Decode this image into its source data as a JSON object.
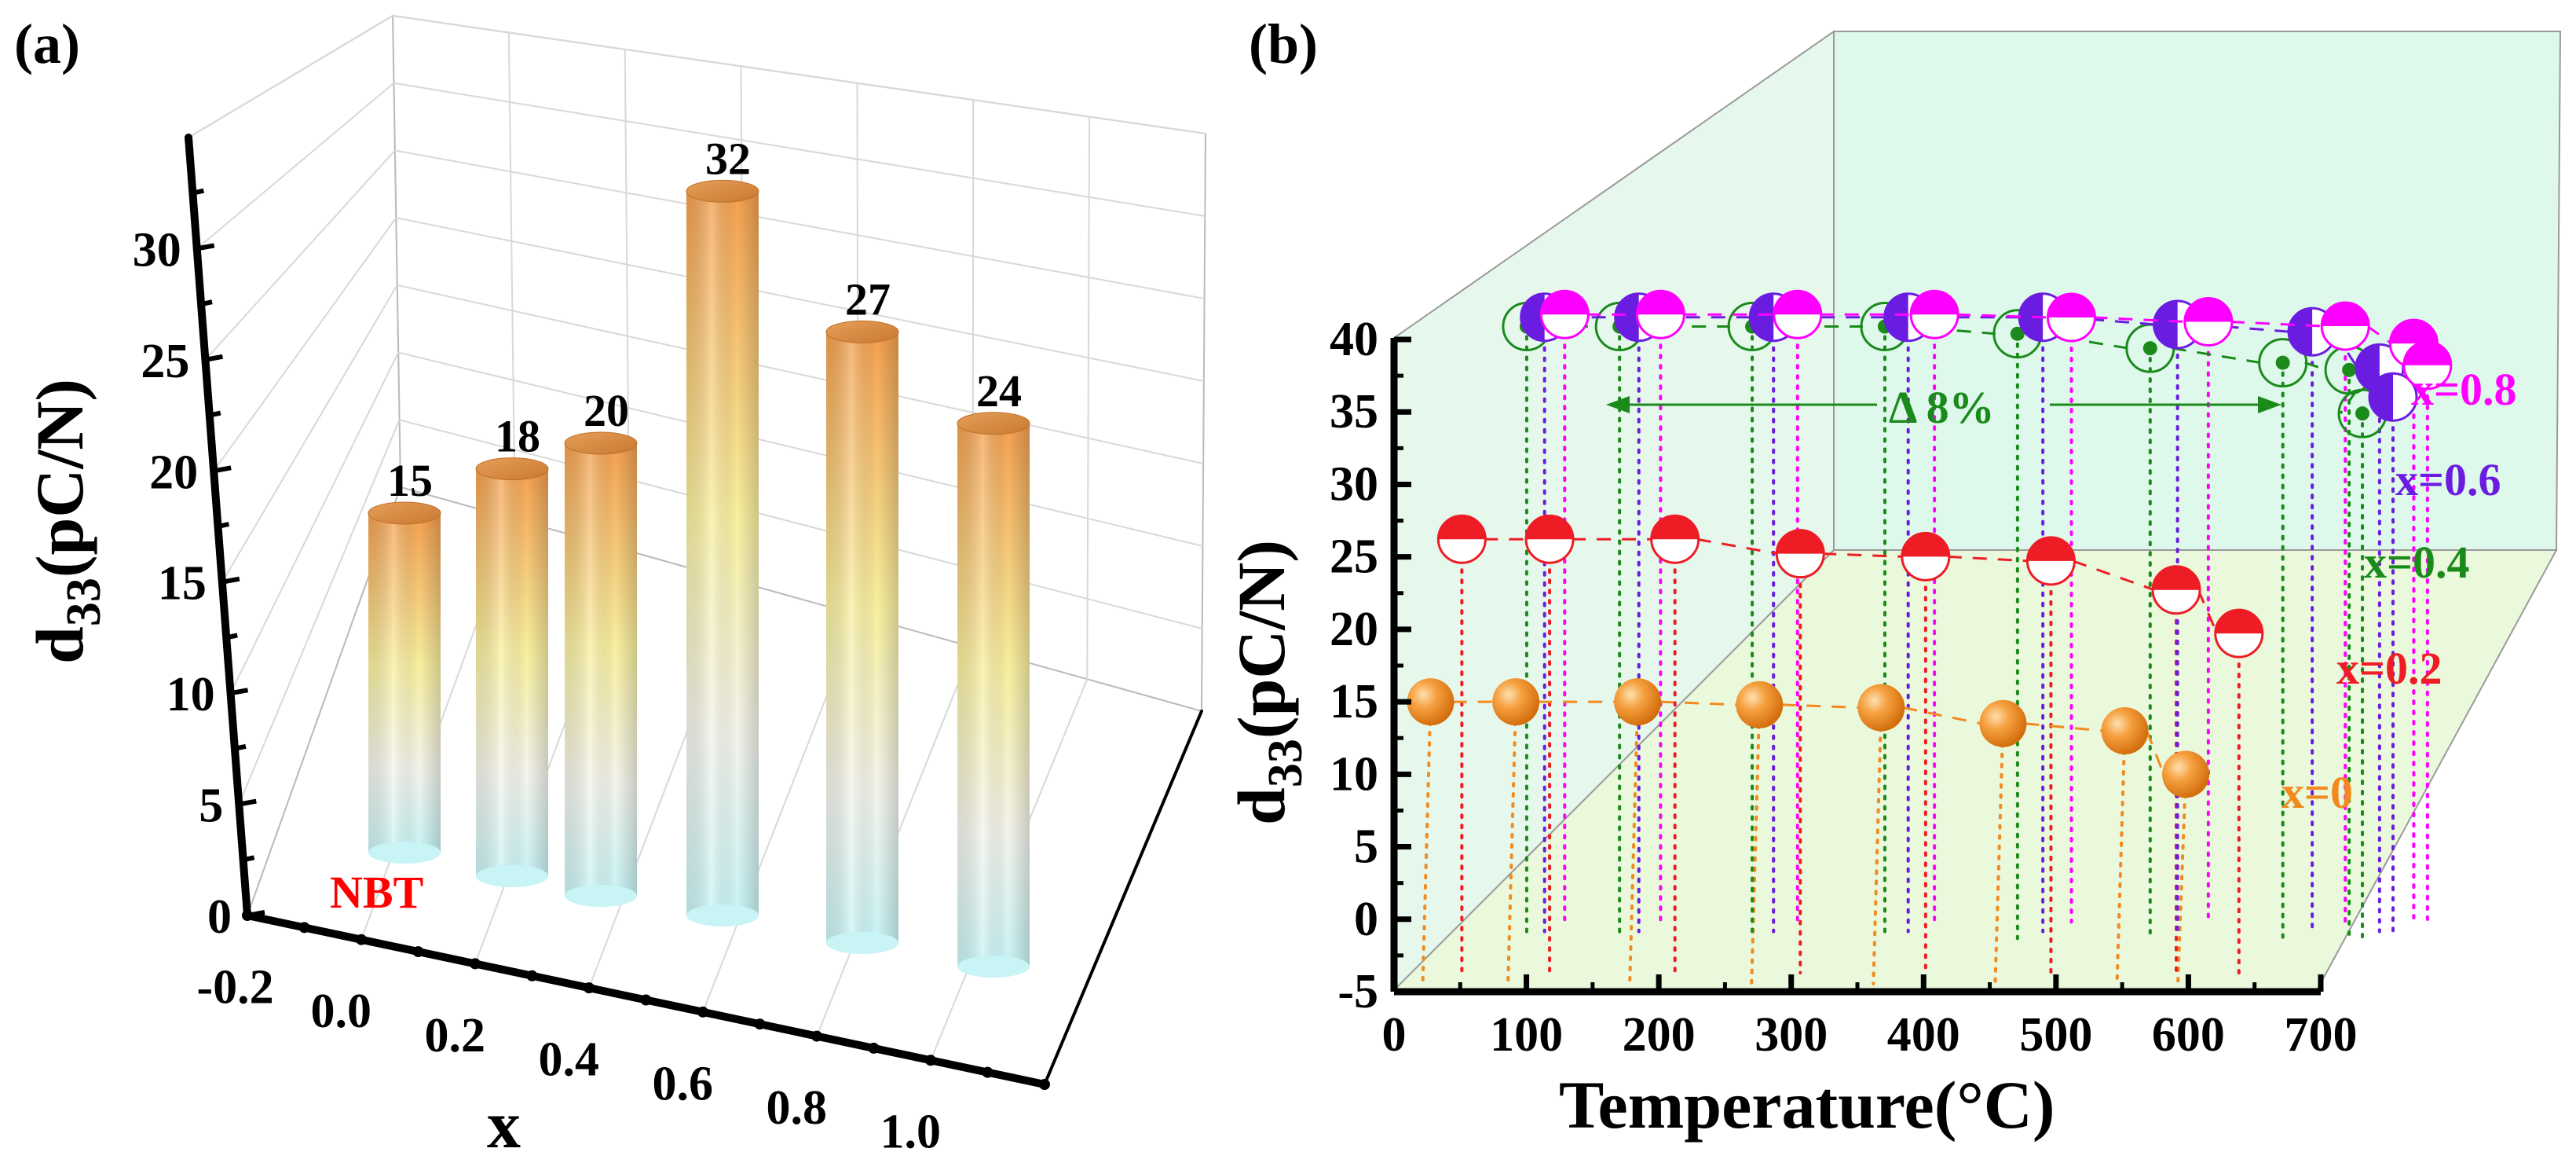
{
  "chart_data": [
    {
      "panel": "(a)",
      "type": "bar",
      "style": "3d-cylinder",
      "categories": [
        "0.0",
        "0.2",
        "0.4",
        "0.6",
        "0.8",
        "1.0"
      ],
      "x_ticks": [
        "-0.2",
        "0.0",
        "0.2",
        "0.4",
        "0.6",
        "0.8",
        "1.0"
      ],
      "values": [
        15,
        18,
        20,
        32,
        27,
        24
      ],
      "data_labels": [
        "15",
        "18",
        "20",
        "32",
        "27",
        "24"
      ],
      "annotation": "NBT",
      "xlabel": "x",
      "ylabel_main": "d",
      "ylabel_sub": "33",
      "ylabel_rest": "(pC/N)",
      "y_ticks": [
        "0",
        "5",
        "10",
        "15",
        "20",
        "25",
        "30"
      ],
      "ylim": [
        0,
        35
      ],
      "colors": {
        "top": "#f0a050",
        "middle": "#f8f0a0",
        "bottom": "#c8f4f6",
        "accent": "#ff0000"
      }
    },
    {
      "panel": "(b)",
      "type": "scatter",
      "style": "3d-waterfall",
      "xlabel": "Temperature(°C)",
      "ylabel_main": "d",
      "ylabel_sub": "33",
      "ylabel_rest": "(pC/N)",
      "x_ticks": [
        "0",
        "100",
        "200",
        "300",
        "400",
        "500",
        "600",
        "700"
      ],
      "y_ticks": [
        "-5",
        "0",
        "5",
        "10",
        "15",
        "20",
        "25",
        "30",
        "35",
        "40"
      ],
      "xlim": [
        0,
        700
      ],
      "ylim": [
        -5,
        40
      ],
      "annotation": "Δ  8%",
      "series": [
        {
          "name": "x=0",
          "color": "#f28a1e",
          "marker": "sphere",
          "x": [
            30,
            100,
            200,
            300,
            400,
            500,
            600,
            650
          ],
          "values": [
            15,
            15,
            15,
            14.8,
            14.6,
            13.5,
            13,
            10
          ]
        },
        {
          "name": "x=0.2",
          "color": "#ee1c25",
          "marker": "half-top",
          "x": [
            30,
            100,
            200,
            300,
            400,
            500,
            600,
            650
          ],
          "values": [
            26,
            26,
            26,
            25,
            24.8,
            24.5,
            22.5,
            19.5
          ]
        },
        {
          "name": "x=0.4",
          "color": "#1a8a1a",
          "marker": "ring-dot",
          "x": [
            30,
            100,
            200,
            300,
            400,
            500,
            600,
            650,
            660
          ],
          "values": [
            40,
            40,
            40,
            40,
            39.5,
            38.5,
            37.5,
            37,
            34
          ]
        },
        {
          "name": "x=0.6",
          "color": "#6a1de0",
          "marker": "half-left",
          "x": [
            30,
            100,
            200,
            300,
            400,
            500,
            600,
            650,
            660
          ],
          "values": [
            40.5,
            40.5,
            40.5,
            40.5,
            40.5,
            40,
            39.5,
            37,
            35
          ]
        },
        {
          "name": "x=0.8",
          "color": "#ff00ff",
          "marker": "half-top",
          "x": [
            30,
            100,
            200,
            300,
            400,
            500,
            600,
            650,
            660
          ],
          "values": [
            40.5,
            40.5,
            40.5,
            40.5,
            40.3,
            40,
            39.7,
            38.5,
            37
          ]
        }
      ]
    }
  ]
}
